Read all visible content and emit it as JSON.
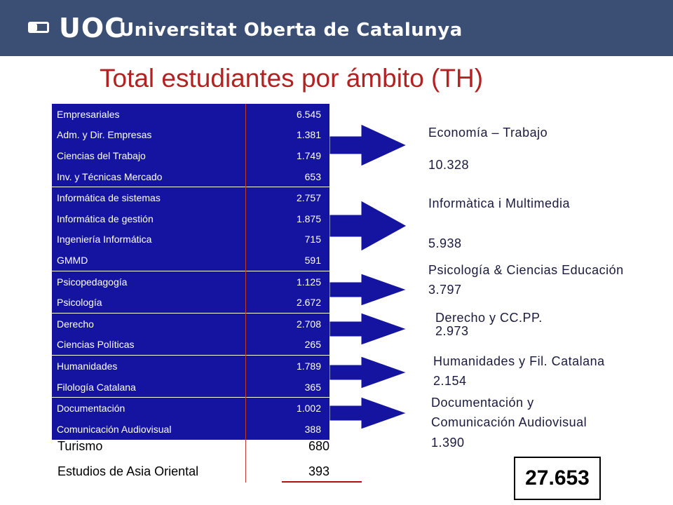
{
  "header": {
    "logo_mark": "UOC",
    "university": "Universitat Oberta de Catalunya"
  },
  "title": "Total estudiantes por ámbito (TH)",
  "groups": [
    {
      "rows": [
        {
          "name": "Empresariales",
          "value": "6.545"
        },
        {
          "name": "Adm. y Dir. Empresas",
          "value": "1.381"
        },
        {
          "name": "Ciencias del Trabajo",
          "value": "1.749"
        },
        {
          "name": "Inv. y Técnicas Mercado",
          "value": "653"
        }
      ]
    },
    {
      "rows": [
        {
          "name": "Informática de sistemas",
          "value": "2.757"
        },
        {
          "name": "Informática de gestión",
          "value": "1.875"
        },
        {
          "name": "Ingeniería Informática",
          "value": "715"
        },
        {
          "name": "GMMD",
          "value": "591"
        }
      ]
    },
    {
      "rows": [
        {
          "name": "Psicopedagogía",
          "value": "1.125"
        },
        {
          "name": "Psicología",
          "value": "2.672"
        }
      ]
    },
    {
      "rows": [
        {
          "name": "Derecho",
          "value": "2.708"
        },
        {
          "name": "Ciencias Políticas",
          "value": "265"
        }
      ]
    },
    {
      "rows": [
        {
          "name": "Humanidades",
          "value": "1.789"
        },
        {
          "name": "Filología Catalana",
          "value": "365"
        }
      ]
    },
    {
      "rows": [
        {
          "name": "Documentación",
          "value": "1.002"
        },
        {
          "name": "Comunicación Audiovisual",
          "value": "388"
        }
      ]
    }
  ],
  "extra_rows": [
    {
      "name": "Turismo",
      "value": "680"
    },
    {
      "name": "Estudios de Asia Oriental",
      "value": "393"
    }
  ],
  "ambitos": {
    "economia": {
      "name": "Economía – Trabajo",
      "total": "10.328"
    },
    "informatica": {
      "name": "Informàtica i Multimedia",
      "total": "5.938"
    },
    "psicologia": {
      "name": "Psicología & Ciencias Educación",
      "total": "3.797"
    },
    "derecho": {
      "name": "Derecho y CC.PP.",
      "total": "2.973"
    },
    "humanidades": {
      "name": "Humanidades y Fil. Catalana",
      "total": "2.154"
    },
    "documentacion": {
      "name_line1": "Documentación y",
      "name_line2": "Comunicación Audiovisual",
      "total": "1.390"
    }
  },
  "grand_total": "27.653",
  "colors": {
    "header": "#3b4e74",
    "table_bg": "#1414a0",
    "title": "#b22222",
    "arrow": "#1414a0"
  }
}
